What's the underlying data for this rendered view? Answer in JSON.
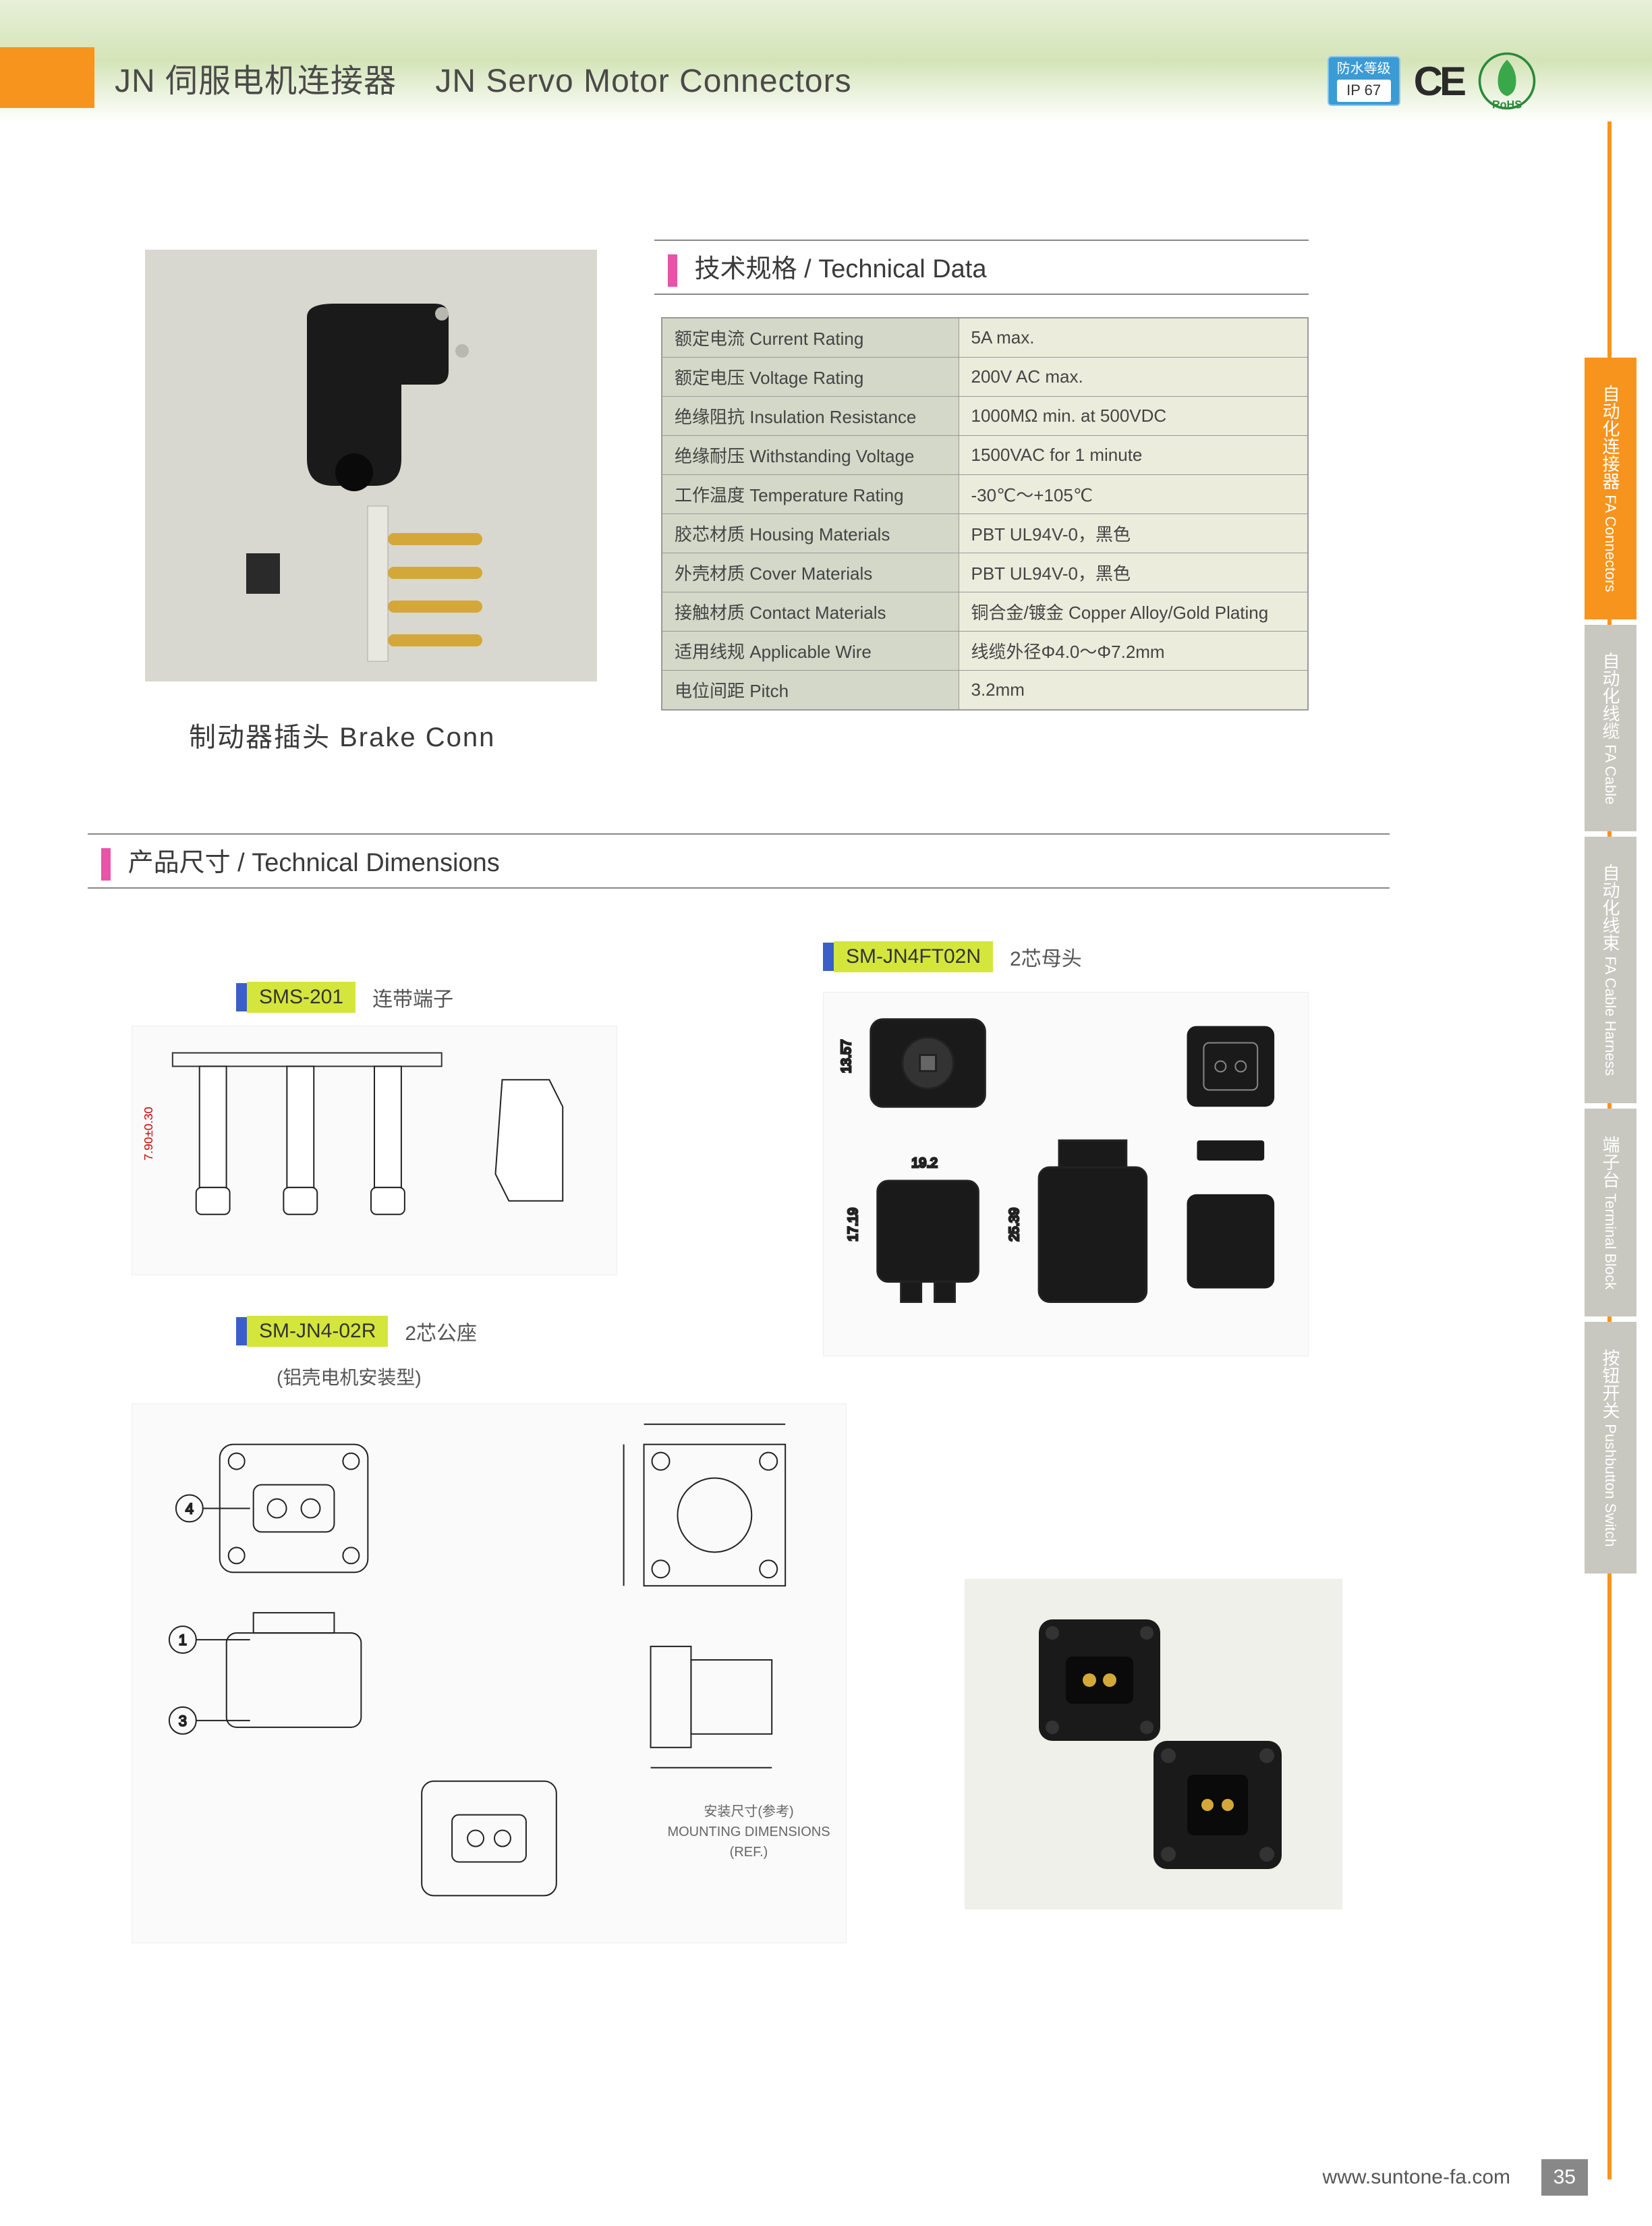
{
  "header": {
    "title_cn": "JN 伺服电机连接器",
    "title_en": "JN Servo Motor  Connectors",
    "ip_label": "防水等级",
    "ip_value": "IP 67",
    "ce": "CE",
    "rohs": "RoHS"
  },
  "product": {
    "caption": "制动器插头  Brake  Conn"
  },
  "sections": {
    "tech_data": "技术规格 /  Technical Data",
    "dimensions": "产品尺寸 /  Technical Dimensions"
  },
  "tech_table": {
    "rows": [
      {
        "label": "额定电流 Current Rating",
        "value": "5A  max."
      },
      {
        "label": "额定电压 Voltage Rating",
        "value": "200V AC max."
      },
      {
        "label": "绝缘阻抗 Insulation Resistance",
        "value": "1000MΩ min. at 500VDC"
      },
      {
        "label": "绝缘耐压 Withstanding Voltage",
        "value": "1500VAC for 1 minute"
      },
      {
        "label": "工作温度 Temperature Rating",
        "value": "-30℃～+105℃"
      },
      {
        "label": "胶芯材质 Housing Materials",
        "value": "PBT  UL94V-0，黑色"
      },
      {
        "label": "外壳材质 Cover Materials",
        "value": "PBT  UL94V-0，黑色"
      },
      {
        "label": "接触材质 Contact Materials",
        "value": "铜合金/镀金 Copper Alloy/Gold Plating"
      },
      {
        "label": "适用线规 Applicable Wire",
        "value": "线缆外径Φ4.0～Φ7.2mm"
      },
      {
        "label": "电位间距 Pitch",
        "value": "3.2mm"
      }
    ]
  },
  "side_tabs": [
    {
      "cn": "自动化连接器",
      "en": "FA Connectors",
      "active": true
    },
    {
      "cn": "自动化线缆",
      "en": "FA Cable",
      "active": false
    },
    {
      "cn": "自动化线束",
      "en": "FA Cable Harness",
      "active": false
    },
    {
      "cn": "端子台",
      "en": "Terminal Block",
      "active": false
    },
    {
      "cn": "按钮开关",
      "en": "Pushbutton Switch",
      "active": false
    }
  ],
  "parts": {
    "p1": {
      "name": "SMS-201",
      "desc": "连带端子"
    },
    "p2": {
      "name": "SM-JN4-02R",
      "desc": "2芯公座",
      "subtitle": "(铝壳电机安装型)"
    },
    "p3": {
      "name": "SM-JN4FT02N",
      "desc": "2芯母头"
    }
  },
  "drawings": {
    "d1": "terminal drawing",
    "d2": "receptacle drawing",
    "d3": "plug drawing",
    "mounting": "安装尺寸(参考)\nMOUNTING DIMENSIONS (REF.)",
    "dims": {
      "d1": "7.90±0.30",
      "d3a": "13.57",
      "d3b": "19.2",
      "d3c": "17.19",
      "d3d": "25.39"
    }
  },
  "footer": {
    "url": "www.suntone-fa.com",
    "page": "35"
  },
  "colors": {
    "orange": "#f7941d",
    "pink": "#e754a8",
    "blue": "#3a5fc8",
    "yellow": "#d4e63c",
    "table_label_bg": "#d4d8c8",
    "table_value_bg": "#ececdd"
  }
}
